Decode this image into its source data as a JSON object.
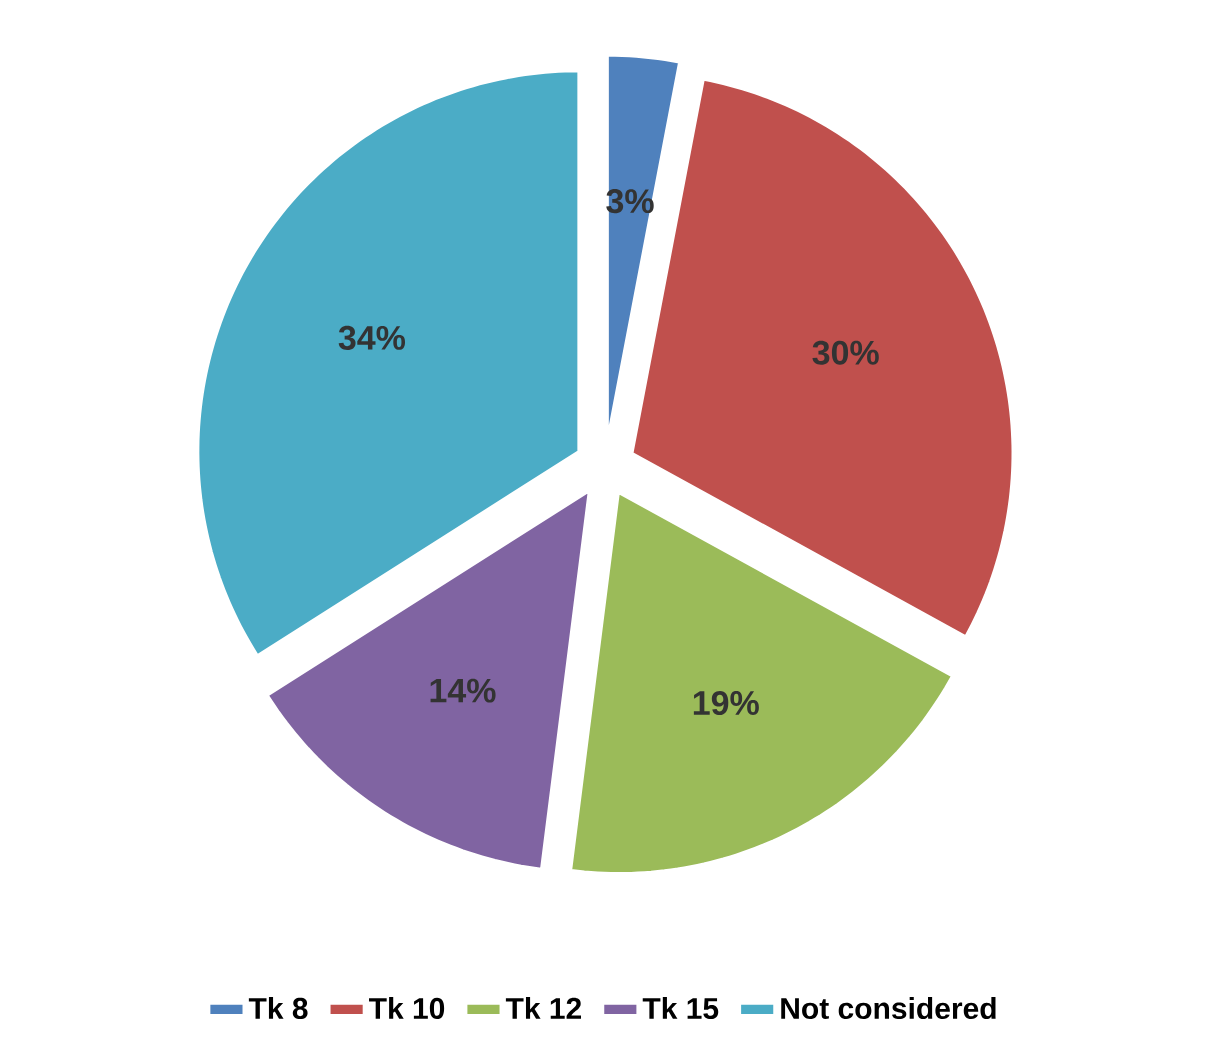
{
  "chart_data": {
    "type": "pie",
    "categories": [
      "Tk 8",
      "Tk 10",
      "Tk 12",
      "Tk 15",
      "Not considered"
    ],
    "values": [
      3,
      30,
      19,
      14,
      34
    ],
    "colors": [
      "#4f81bd",
      "#c0504d",
      "#9bbb59",
      "#8064a2",
      "#4bacc6"
    ],
    "value_labels": [
      "3%",
      "30%",
      "19%",
      "14%",
      "34%"
    ],
    "legend": "bottom"
  }
}
